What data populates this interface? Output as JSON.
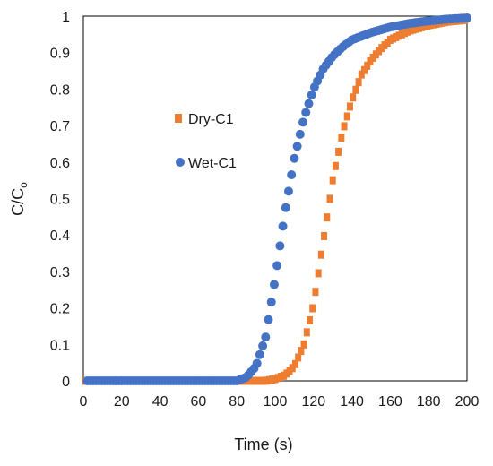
{
  "chart_data": {
    "type": "scatter",
    "xlabel": "Time (s)",
    "ylabel_main": "C/C",
    "ylabel_subscript": "o",
    "xlim": [
      0,
      200
    ],
    "ylim": [
      0,
      1
    ],
    "x_ticks": [
      "0",
      "20",
      "40",
      "60",
      "80",
      "100",
      "120",
      "140",
      "160",
      "180",
      "200"
    ],
    "y_ticks": [
      "0",
      "0.1",
      "0.2",
      "0.3",
      "0.4",
      "0.5",
      "0.6",
      "0.7",
      "0.8",
      "0.9",
      "1"
    ],
    "grid": false,
    "legend_position": "center-left",
    "series": [
      {
        "name": "Dry-C1",
        "marker": "square",
        "color": "#ED7D31",
        "x_start": 1,
        "x_end": 200,
        "x_step": 1.5,
        "points": [
          [
            0,
            0
          ],
          [
            95,
            0.0
          ],
          [
            100,
            0.005
          ],
          [
            105,
            0.015
          ],
          [
            110,
            0.04
          ],
          [
            115,
            0.1
          ],
          [
            120,
            0.21
          ],
          [
            125,
            0.38
          ],
          [
            130,
            0.55
          ],
          [
            135,
            0.68
          ],
          [
            140,
            0.77
          ],
          [
            145,
            0.84
          ],
          [
            150,
            0.88
          ],
          [
            155,
            0.91
          ],
          [
            160,
            0.935
          ],
          [
            170,
            0.96
          ],
          [
            180,
            0.975
          ],
          [
            190,
            0.985
          ],
          [
            200,
            0.99
          ]
        ]
      },
      {
        "name": "Wet-C1",
        "marker": "circle",
        "color": "#4472C4",
        "x_start": 2,
        "x_end": 200,
        "x_step": 1.5,
        "points": [
          [
            0,
            0
          ],
          [
            80,
            0.0
          ],
          [
            85,
            0.01
          ],
          [
            90,
            0.04
          ],
          [
            95,
            0.12
          ],
          [
            100,
            0.28
          ],
          [
            105,
            0.46
          ],
          [
            110,
            0.61
          ],
          [
            115,
            0.72
          ],
          [
            120,
            0.8
          ],
          [
            125,
            0.855
          ],
          [
            130,
            0.89
          ],
          [
            135,
            0.915
          ],
          [
            140,
            0.935
          ],
          [
            150,
            0.955
          ],
          [
            160,
            0.97
          ],
          [
            170,
            0.98
          ],
          [
            180,
            0.987
          ],
          [
            190,
            0.992
          ],
          [
            200,
            0.995
          ]
        ]
      }
    ]
  }
}
